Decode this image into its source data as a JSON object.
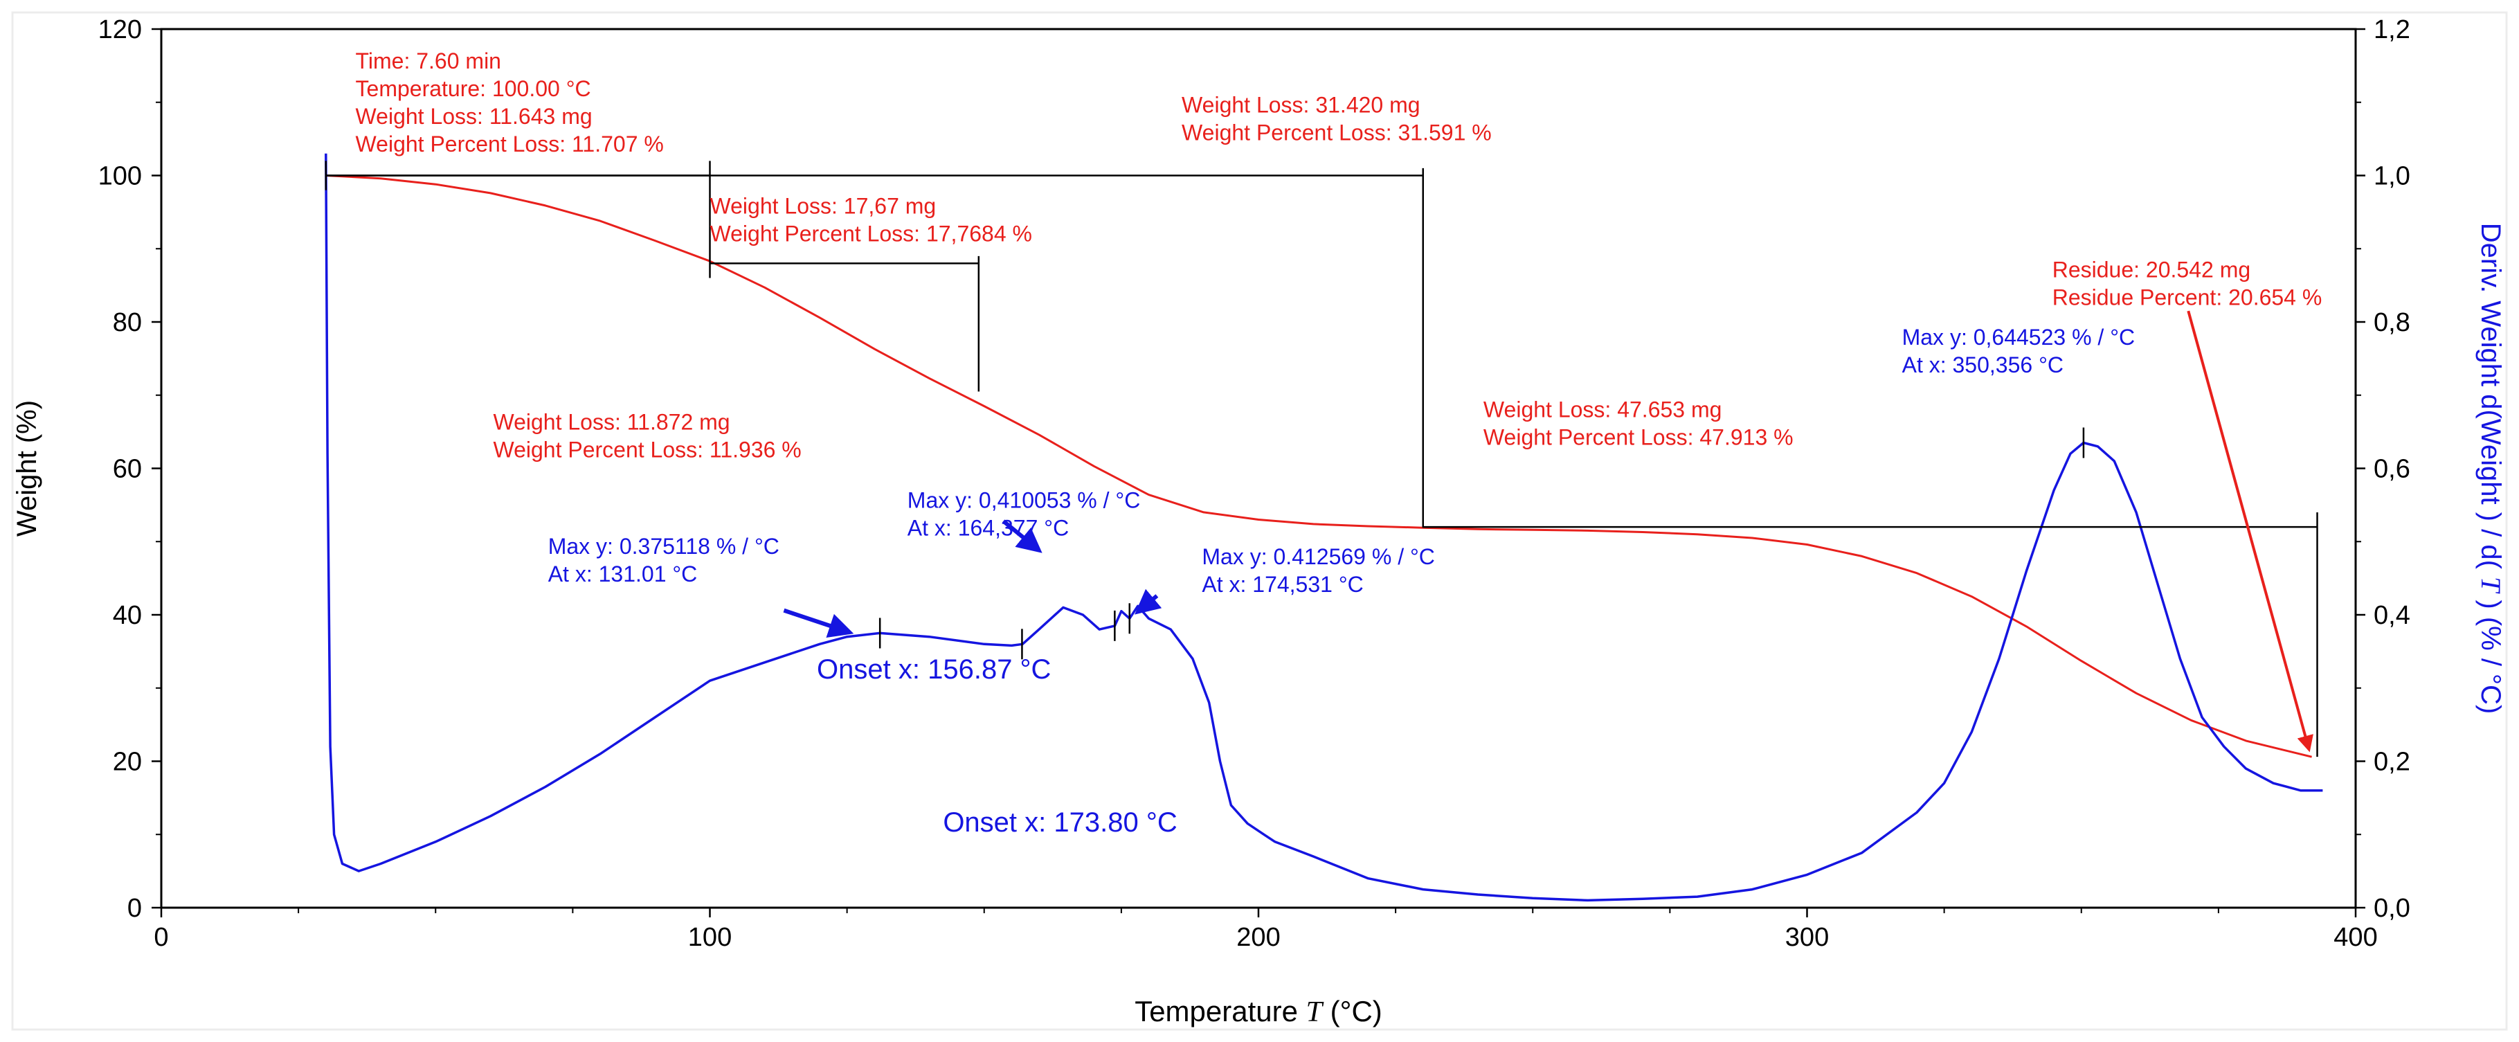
{
  "chart_data": {
    "type": "line",
    "xlabel": "Temperature",
    "xlabel_var": "T",
    "xlabel_unit": "(°C)",
    "ylabel": "Weight  (%)",
    "y2label_pre": "Deriv. Weight d(Weight ) / d( ",
    "y2label_var": "T",
    "y2label_post": " )  (% / °C)",
    "xlim": [
      0,
      400
    ],
    "ylim": [
      0,
      120
    ],
    "y2lim": [
      0,
      1.2
    ],
    "x_ticks": [
      "0",
      "100",
      "200",
      "300",
      "400"
    ],
    "y_ticks": [
      "0",
      "20",
      "40",
      "60",
      "80",
      "100",
      "120"
    ],
    "y2_ticks": [
      "0,0",
      "0,2",
      "0,4",
      "0,6",
      "0,8",
      "1,0",
      "1,2"
    ],
    "colors": {
      "weight": "#e8201c",
      "deriv": "#1515e0",
      "marker": "#000000",
      "axis": "#000000"
    },
    "series": [
      {
        "name": "Weight",
        "axis": "left",
        "color": "#e8201c",
        "x": [
          30,
          40,
          50,
          60,
          70,
          80,
          90,
          100,
          110,
          120,
          130,
          140,
          150,
          160,
          170,
          180,
          190,
          200,
          210,
          220,
          230,
          240,
          250,
          260,
          270,
          280,
          290,
          300,
          310,
          320,
          330,
          340,
          350,
          360,
          370,
          380,
          392
        ],
        "y": [
          100,
          99.6,
          98.8,
          97.6,
          95.9,
          93.8,
          91.1,
          88.3,
          84.7,
          80.6,
          76.3,
          72.3,
          68.5,
          64.6,
          60.3,
          56.4,
          54.0,
          53.0,
          52.4,
          52.1,
          51.9,
          51.7,
          51.6,
          51.5,
          51.3,
          51.0,
          50.5,
          49.6,
          48.0,
          45.7,
          42.5,
          38.4,
          33.7,
          29.3,
          25.6,
          22.8,
          20.6
        ]
      },
      {
        "name": "Deriv. Weight",
        "axis": "right",
        "color": "#1515e0",
        "x": [
          30,
          30.3,
          30.8,
          31.5,
          33,
          36,
          40,
          50,
          60,
          70,
          80,
          90,
          100,
          110,
          120,
          125,
          131,
          140,
          150,
          155,
          157,
          160,
          164.4,
          168,
          171,
          173.8,
          175,
          176.5,
          178,
          180,
          184,
          188,
          191,
          193,
          195,
          198,
          201,
          203,
          210,
          220,
          230,
          240,
          250,
          260,
          270,
          280,
          290,
          300,
          310,
          320,
          325,
          330,
          335,
          340,
          345,
          348,
          350.4,
          353,
          356,
          360,
          364,
          368,
          372,
          376,
          380,
          385,
          390,
          394
        ],
        "y": [
          1.03,
          0.62,
          0.22,
          0.1,
          0.06,
          0.05,
          0.06,
          0.09,
          0.125,
          0.165,
          0.21,
          0.26,
          0.31,
          0.335,
          0.36,
          0.37,
          0.375,
          0.37,
          0.36,
          0.358,
          0.36,
          0.38,
          0.41,
          0.4,
          0.38,
          0.385,
          0.405,
          0.395,
          0.412,
          0.395,
          0.38,
          0.34,
          0.28,
          0.2,
          0.14,
          0.115,
          0.1,
          0.09,
          0.07,
          0.04,
          0.025,
          0.018,
          0.013,
          0.01,
          0.012,
          0.015,
          0.025,
          0.045,
          0.075,
          0.13,
          0.17,
          0.24,
          0.34,
          0.46,
          0.57,
          0.62,
          0.635,
          0.63,
          0.61,
          0.54,
          0.44,
          0.34,
          0.26,
          0.22,
          0.19,
          0.17,
          0.16,
          0.16
        ]
      }
    ],
    "step_markers": [
      {
        "from_x": 30,
        "to_x": 100,
        "level_y": 100,
        "tick_top": 102,
        "tick_bottom": 86
      },
      {
        "from_x": 100,
        "to_x": 149,
        "level_y": 88,
        "tick_top": 89,
        "tick_bottom": 70.5
      },
      {
        "from_x": 30,
        "to_x": 230,
        "level_y": 100,
        "tick_top": 101,
        "tick_bottom": 51.9
      },
      {
        "from_x": 230,
        "to_x": 393,
        "level_y": 52,
        "tick_top": 54,
        "tick_bottom": 20.6
      }
    ],
    "annotations": [
      {
        "id": "time-note",
        "color": "#e8201c",
        "x": 35.4,
        "y": 114.6,
        "lines": [
          "Time: 7.60 min",
          "Temperature: 100.00 °C",
          "Weight Loss: 11.643 mg",
          "Weight Percent Loss: 11.707 %"
        ]
      },
      {
        "id": "loss-31",
        "color": "#e8201c",
        "x": 186,
        "y": 108.6,
        "lines": [
          "Weight Loss: 31.420 mg",
          "Weight Percent Loss: 31.591 %"
        ]
      },
      {
        "id": "loss-17",
        "color": "#e8201c",
        "x": 100,
        "y": 94.8,
        "lines": [
          "Weight Loss: 17,67 mg",
          "Weight Percent Loss: 17,7684 %"
        ]
      },
      {
        "id": "loss-11-8",
        "color": "#e8201c",
        "x": 60.5,
        "y": 65.3,
        "lines": [
          "Weight Loss: 11.872 mg",
          "Weight Percent Loss: 11.936 %"
        ]
      },
      {
        "id": "loss-47",
        "color": "#e8201c",
        "x": 241,
        "y": 67.0,
        "lines": [
          "Weight Loss: 47.653 mg",
          "Weight Percent Loss: 47.913 %"
        ]
      },
      {
        "id": "residue",
        "color": "#e8201c",
        "x": 344.7,
        "y": 86.1,
        "lines": [
          "Residue: 20.542 mg",
          "Residue Percent: 20.654 %"
        ]
      },
      {
        "id": "max-350",
        "color": "#1515e0",
        "x": 317.3,
        "y": 76.9,
        "lines": [
          "Max y: 0,644523 % / °C",
          "At x: 350,356 °C"
        ]
      },
      {
        "id": "max-164",
        "color": "#1515e0",
        "x": 136,
        "y": 54.6,
        "lines": [
          "Max y: 0,410053 % / °C",
          "At x: 164,377 °C"
        ]
      },
      {
        "id": "max-131",
        "color": "#1515e0",
        "x": 70.5,
        "y": 48.3,
        "lines": [
          "Max y: 0.375118 % / °C",
          "At x: 131.01 °C"
        ]
      },
      {
        "id": "max-174",
        "color": "#1515e0",
        "x": 189.7,
        "y": 46.9,
        "lines": [
          "Max y: 0.412569 % / °C",
          "At x: 174,531 °C"
        ]
      },
      {
        "id": "onset-156",
        "color": "#1515e0",
        "x": 119.5,
        "y": 31.3,
        "size": "large",
        "lines": [
          "Onset x: 156.87 °C"
        ]
      },
      {
        "id": "onset-173",
        "color": "#1515e0",
        "x": 142.5,
        "y": 10.4,
        "size": "large",
        "lines": [
          "Onset x: 173.80 °C"
        ]
      }
    ],
    "arrows": [
      {
        "color": "#1515e0",
        "from": [
          113.5,
          40.6
        ],
        "to": [
          125.5,
          37.6
        ]
      },
      {
        "color": "#1515e0",
        "from": [
          153.5,
          52.8
        ],
        "to": [
          160.0,
          48.8
        ]
      },
      {
        "color": "#1515e0",
        "from": [
          181.5,
          42.6
        ],
        "to": [
          178.0,
          40.4
        ]
      },
      {
        "color": "#e8201c",
        "from": [
          369.5,
          81.5
        ],
        "to": [
          391.5,
          21.6
        ]
      }
    ],
    "peak_ticks": [
      {
        "x": 131.0,
        "y2": 0.375
      },
      {
        "x": 156.9,
        "y2": 0.36
      },
      {
        "x": 173.8,
        "y2": 0.385
      },
      {
        "x": 176.5,
        "y2": 0.395
      },
      {
        "x": 350.4,
        "y2": 0.635
      }
    ]
  }
}
